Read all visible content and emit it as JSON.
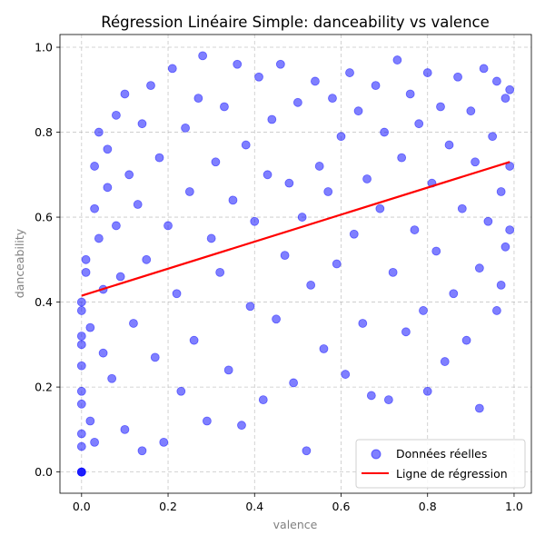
{
  "chart_data": {
    "type": "scatter",
    "title": "Régression Linéaire Simple: danceability vs valence",
    "xlabel": "valence",
    "ylabel": "danceability",
    "xlim": [
      -0.05,
      1.04
    ],
    "ylim": [
      -0.05,
      1.03
    ],
    "xticks": [
      0.0,
      0.2,
      0.4,
      0.6,
      0.8,
      1.0
    ],
    "yticks": [
      0.0,
      0.2,
      0.4,
      0.6,
      0.8,
      1.0
    ],
    "xtick_labels": [
      "0.0",
      "0.2",
      "0.4",
      "0.6",
      "0.8",
      "1.0"
    ],
    "ytick_labels": [
      "0.0",
      "0.2",
      "0.4",
      "0.6",
      "0.8",
      "1.0"
    ],
    "grid": true,
    "legend_position": "bottom-right",
    "series": [
      {
        "name": "Données réelles",
        "kind": "scatter",
        "color": "#0000ff",
        "alpha": 0.5,
        "points": [
          [
            0.0,
            0.0
          ],
          [
            0.0,
            0.0
          ],
          [
            0.0,
            0.0
          ],
          [
            0.0,
            0.06
          ],
          [
            0.0,
            0.09
          ],
          [
            0.0,
            0.16
          ],
          [
            0.0,
            0.19
          ],
          [
            0.0,
            0.25
          ],
          [
            0.0,
            0.3
          ],
          [
            0.0,
            0.32
          ],
          [
            0.0,
            0.38
          ],
          [
            0.0,
            0.4
          ],
          [
            0.01,
            0.47
          ],
          [
            0.01,
            0.5
          ],
          [
            0.02,
            0.34
          ],
          [
            0.02,
            0.12
          ],
          [
            0.03,
            0.07
          ],
          [
            0.03,
            0.62
          ],
          [
            0.03,
            0.72
          ],
          [
            0.04,
            0.8
          ],
          [
            0.04,
            0.55
          ],
          [
            0.05,
            0.28
          ],
          [
            0.05,
            0.43
          ],
          [
            0.06,
            0.67
          ],
          [
            0.06,
            0.76
          ],
          [
            0.07,
            0.22
          ],
          [
            0.08,
            0.58
          ],
          [
            0.08,
            0.84
          ],
          [
            0.09,
            0.46
          ],
          [
            0.1,
            0.89
          ],
          [
            0.1,
            0.1
          ],
          [
            0.11,
            0.7
          ],
          [
            0.12,
            0.35
          ],
          [
            0.13,
            0.63
          ],
          [
            0.14,
            0.82
          ],
          [
            0.14,
            0.05
          ],
          [
            0.15,
            0.5
          ],
          [
            0.16,
            0.91
          ],
          [
            0.17,
            0.27
          ],
          [
            0.18,
            0.74
          ],
          [
            0.19,
            0.07
          ],
          [
            0.2,
            0.58
          ],
          [
            0.21,
            0.95
          ],
          [
            0.22,
            0.42
          ],
          [
            0.23,
            0.19
          ],
          [
            0.24,
            0.81
          ],
          [
            0.25,
            0.66
          ],
          [
            0.26,
            0.31
          ],
          [
            0.27,
            0.88
          ],
          [
            0.28,
            0.98
          ],
          [
            0.29,
            0.12
          ],
          [
            0.3,
            0.55
          ],
          [
            0.31,
            0.73
          ],
          [
            0.32,
            0.47
          ],
          [
            0.33,
            0.86
          ],
          [
            0.34,
            0.24
          ],
          [
            0.35,
            0.64
          ],
          [
            0.36,
            0.96
          ],
          [
            0.37,
            0.11
          ],
          [
            0.38,
            0.77
          ],
          [
            0.39,
            0.39
          ],
          [
            0.4,
            0.59
          ],
          [
            0.41,
            0.93
          ],
          [
            0.42,
            0.17
          ],
          [
            0.43,
            0.7
          ],
          [
            0.44,
            0.83
          ],
          [
            0.45,
            0.36
          ],
          [
            0.46,
            0.96
          ],
          [
            0.47,
            0.51
          ],
          [
            0.48,
            0.68
          ],
          [
            0.49,
            0.21
          ],
          [
            0.5,
            0.87
          ],
          [
            0.51,
            0.6
          ],
          [
            0.52,
            0.05
          ],
          [
            0.53,
            0.44
          ],
          [
            0.54,
            0.92
          ],
          [
            0.55,
            0.72
          ],
          [
            0.56,
            0.29
          ],
          [
            0.57,
            0.66
          ],
          [
            0.58,
            0.88
          ],
          [
            0.59,
            0.49
          ],
          [
            0.6,
            0.79
          ],
          [
            0.61,
            0.23
          ],
          [
            0.62,
            0.94
          ],
          [
            0.63,
            0.56
          ],
          [
            0.64,
            0.85
          ],
          [
            0.65,
            0.35
          ],
          [
            0.66,
            0.69
          ],
          [
            0.67,
            0.18
          ],
          [
            0.68,
            0.91
          ],
          [
            0.69,
            0.62
          ],
          [
            0.7,
            0.8
          ],
          [
            0.71,
            0.17
          ],
          [
            0.72,
            0.47
          ],
          [
            0.73,
            0.97
          ],
          [
            0.74,
            0.74
          ],
          [
            0.75,
            0.33
          ],
          [
            0.76,
            0.89
          ],
          [
            0.77,
            0.57
          ],
          [
            0.78,
            0.82
          ],
          [
            0.79,
            0.38
          ],
          [
            0.8,
            0.94
          ],
          [
            0.8,
            0.19
          ],
          [
            0.81,
            0.68
          ],
          [
            0.82,
            0.52
          ],
          [
            0.83,
            0.86
          ],
          [
            0.84,
            0.26
          ],
          [
            0.85,
            0.77
          ],
          [
            0.86,
            0.42
          ],
          [
            0.87,
            0.93
          ],
          [
            0.88,
            0.62
          ],
          [
            0.89,
            0.31
          ],
          [
            0.9,
            0.85
          ],
          [
            0.91,
            0.73
          ],
          [
            0.92,
            0.15
          ],
          [
            0.92,
            0.48
          ],
          [
            0.93,
            0.95
          ],
          [
            0.94,
            0.59
          ],
          [
            0.95,
            0.79
          ],
          [
            0.96,
            0.38
          ],
          [
            0.96,
            0.92
          ],
          [
            0.97,
            0.66
          ],
          [
            0.97,
            0.44
          ],
          [
            0.98,
            0.88
          ],
          [
            0.98,
            0.53
          ],
          [
            0.99,
            0.9
          ],
          [
            0.99,
            0.72
          ],
          [
            0.99,
            0.57
          ]
        ]
      },
      {
        "name": "Ligne de régression",
        "kind": "line",
        "color": "#ff0000",
        "x": [
          0.0,
          0.99
        ],
        "y": [
          0.415,
          0.73
        ]
      }
    ]
  }
}
